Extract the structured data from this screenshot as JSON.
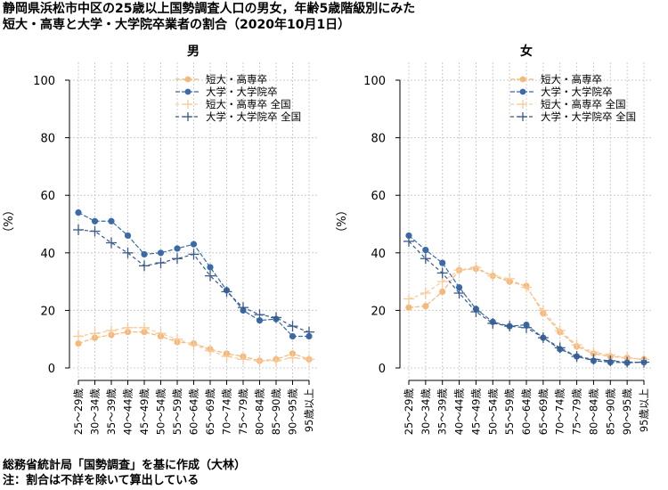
{
  "title": {
    "line1": "静岡県浜松市中区の25歳以上国勢調査人口の男女，年齢5歳階級別にみた",
    "line2": "短大・高専と大学・大学院卒業者の割合（2020年10月1日）"
  },
  "footer": {
    "line1": "総務省統計局「国勢調査」を基に作成（大林）",
    "line2": "注：割合は不詳を除いて算出している"
  },
  "colors": {
    "tandai": "#f5b87a",
    "daigaku": "#3a6aa8",
    "tandai_national": "#f8c99a",
    "daigaku_national": "#3a5a8a",
    "grid": "#cccccc"
  },
  "chart_data": [
    {
      "type": "line",
      "title": "男",
      "ylabel": "（%）",
      "ylim": [
        0,
        100
      ],
      "yticks": [
        0,
        20,
        40,
        60,
        80,
        100
      ],
      "grid": true,
      "legend": "top-right",
      "categories": [
        "25～29歳",
        "30～34歳",
        "35～39歳",
        "40～44歳",
        "45～49歳",
        "50～54歳",
        "55～59歳",
        "60～64歳",
        "65～69歳",
        "70～74歳",
        "75～79歳",
        "80～84歳",
        "85～90歳",
        "90～95歳",
        "95歳以上"
      ],
      "series": [
        {
          "name": "短大・高専卒",
          "key": "tandai",
          "style": "solid-dot",
          "values": [
            8.5,
            10.5,
            11.5,
            12.5,
            12.5,
            11,
            9,
            8.5,
            6.5,
            5,
            4,
            2.5,
            3,
            5,
            3
          ]
        },
        {
          "name": "大学・大学院卒",
          "key": "daigaku",
          "style": "solid-dot",
          "values": [
            54,
            51,
            51,
            46,
            39.5,
            40,
            41.5,
            43,
            35,
            27,
            20,
            16.5,
            17,
            11,
            11
          ]
        },
        {
          "name": "短大・高専卒 全国",
          "key": "tandai_national",
          "style": "dash-plus",
          "values": [
            11,
            12,
            13,
            14,
            14,
            12,
            10,
            8,
            6,
            4,
            3,
            2.5,
            2.5,
            3.5,
            3
          ]
        },
        {
          "name": "大学・大学院卒 全国",
          "key": "daigaku_national",
          "style": "dash-plus",
          "values": [
            48,
            47.5,
            43.5,
            40,
            35.5,
            36.5,
            38,
            39.5,
            32,
            26.5,
            21,
            18.5,
            17.5,
            14.5,
            12.5
          ]
        }
      ]
    },
    {
      "type": "line",
      "title": "女",
      "ylabel": "（%）",
      "ylim": [
        0,
        100
      ],
      "yticks": [
        0,
        20,
        40,
        60,
        80,
        100
      ],
      "grid": true,
      "legend": "top-right",
      "categories": [
        "25～29歳",
        "30～34歳",
        "35～39歳",
        "40～44歳",
        "45～49歳",
        "50～54歳",
        "55～59歳",
        "60～64歳",
        "65～69歳",
        "70～74歳",
        "75～79歳",
        "80～84歳",
        "85～90歳",
        "90～95歳",
        "95歳以上"
      ],
      "series": [
        {
          "name": "短大・高専卒",
          "key": "tandai",
          "style": "solid-dot",
          "values": [
            21,
            21.5,
            26.5,
            34,
            34.5,
            32,
            30,
            28.5,
            19,
            12.5,
            7.5,
            5,
            4,
            3.5,
            3
          ]
        },
        {
          "name": "大学・大学院卒",
          "key": "daigaku",
          "style": "solid-dot",
          "values": [
            46,
            41,
            36.5,
            28,
            20.5,
            16,
            14.5,
            15,
            10.5,
            6.5,
            4,
            2.5,
            2,
            1.8,
            2
          ]
        },
        {
          "name": "短大・高専卒 全国",
          "key": "tandai_national",
          "style": "dash-plus",
          "values": [
            24,
            26,
            30,
            34,
            35,
            32,
            31,
            28,
            20,
            13,
            8,
            5.5,
            4.5,
            3.5,
            3
          ]
        },
        {
          "name": "大学・大学院卒 全国",
          "key": "daigaku_national",
          "style": "dash-plus",
          "values": [
            44,
            38,
            33,
            26,
            19.5,
            15.5,
            14.5,
            14,
            10.5,
            7,
            4,
            3,
            2.5,
            2,
            2
          ]
        }
      ]
    }
  ]
}
